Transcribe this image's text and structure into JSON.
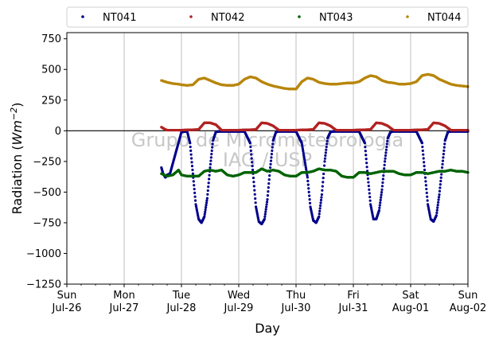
{
  "chart_data": {
    "type": "scatter",
    "title": "",
    "xlabel": "Day",
    "ylabel_main": "Radiation (",
    "ylabel_unit": "Wm",
    "ylabel_exp": "−2",
    "ylabel_close": ")",
    "xlim": [
      0,
      7
    ],
    "ylim": [
      -1250,
      800
    ],
    "yticks": [
      -1250,
      -1000,
      -750,
      -500,
      -250,
      0,
      250,
      500,
      750
    ],
    "ytick_labels": [
      "−1250",
      "−1000",
      "−750",
      "−500",
      "−250",
      "0",
      "250",
      "500",
      "750"
    ],
    "xticks": [
      {
        "x": 0,
        "day": "Sun",
        "date": "Jul-26"
      },
      {
        "x": 1,
        "day": "Mon",
        "date": "Jul-27"
      },
      {
        "x": 2,
        "day": "Tue",
        "date": "Jul-28"
      },
      {
        "x": 3,
        "day": "Wed",
        "date": "Jul-29"
      },
      {
        "x": 4,
        "day": "Thu",
        "date": "Jul-30"
      },
      {
        "x": 5,
        "day": "Fri",
        "date": "Jul-31"
      },
      {
        "x": 6,
        "day": "Sat",
        "date": "Aug-01"
      },
      {
        "x": 7,
        "day": "Sun",
        "date": "Aug-02"
      }
    ],
    "grid": "vertical",
    "zero_line": 0,
    "legend_position": "top",
    "watermark": [
      "Grupo de Micrometeorologia",
      "IAG / USP"
    ],
    "series": [
      {
        "name": "NT041",
        "color": "#00008b",
        "x": [
          1.65,
          1.68,
          1.72,
          1.75,
          1.8,
          2.0,
          2.1,
          2.15,
          2.2,
          2.25,
          2.3,
          2.35,
          2.4,
          2.45,
          2.5,
          2.55,
          2.6,
          2.65,
          2.7,
          2.75,
          2.8,
          2.85,
          2.9,
          3.0,
          3.1,
          3.2,
          3.25,
          3.3,
          3.35,
          3.4,
          3.45,
          3.5,
          3.55,
          3.6,
          3.65,
          3.7,
          3.75,
          3.8,
          3.85,
          3.9,
          4.0,
          4.1,
          4.2,
          4.25,
          4.3,
          4.35,
          4.4,
          4.45,
          4.5,
          4.55,
          4.6,
          4.65,
          4.7,
          4.75,
          4.8,
          4.85,
          4.9,
          5.0,
          5.1,
          5.2,
          5.25,
          5.3,
          5.35,
          5.4,
          5.45,
          5.5,
          5.55,
          5.6,
          5.65,
          5.7,
          5.75,
          5.8,
          5.85,
          5.9,
          6.0,
          6.1,
          6.2,
          6.25,
          6.3,
          6.35,
          6.4,
          6.45,
          6.5,
          6.55,
          6.6,
          6.65,
          6.7,
          6.75,
          6.8,
          6.85,
          6.9,
          7.0
        ],
        "y": [
          -300,
          -350,
          -380,
          -360,
          -350,
          -10,
          -5,
          -100,
          -350,
          -600,
          -720,
          -750,
          -700,
          -550,
          -300,
          -80,
          -10,
          -5,
          -5,
          -5,
          -5,
          -5,
          -5,
          -5,
          -5,
          -100,
          -350,
          -620,
          -740,
          -760,
          -720,
          -560,
          -300,
          -80,
          -10,
          -5,
          -5,
          -5,
          -5,
          -5,
          -5,
          -100,
          -380,
          -620,
          -730,
          -750,
          -700,
          -520,
          -250,
          -60,
          -10,
          -5,
          -5,
          -5,
          -5,
          -5,
          -5,
          -5,
          -5,
          -100,
          -360,
          -600,
          -720,
          -720,
          -650,
          -480,
          -250,
          -60,
          -10,
          -5,
          -5,
          -5,
          -5,
          -5,
          -5,
          -5,
          -100,
          -350,
          -600,
          -720,
          -740,
          -690,
          -520,
          -300,
          -80,
          -10,
          -5,
          -5,
          -5,
          -5,
          -5,
          -5
        ]
      },
      {
        "name": "NT042",
        "color": "#b22222",
        "x": [
          1.65,
          1.7,
          1.75,
          2.0,
          2.3,
          2.4,
          2.5,
          2.6,
          2.7,
          3.0,
          3.3,
          3.4,
          3.5,
          3.6,
          3.7,
          4.0,
          4.3,
          4.4,
          4.5,
          4.6,
          4.7,
          5.0,
          5.3,
          5.4,
          5.5,
          5.6,
          5.7,
          6.0,
          6.3,
          6.4,
          6.5,
          6.6,
          6.7,
          7.0
        ],
        "y": [
          30,
          15,
          5,
          5,
          10,
          65,
          65,
          50,
          5,
          5,
          10,
          65,
          60,
          40,
          5,
          5,
          10,
          65,
          60,
          40,
          5,
          5,
          10,
          65,
          60,
          40,
          5,
          5,
          10,
          65,
          60,
          40,
          5,
          5
        ]
      },
      {
        "name": "NT043",
        "color": "#006400",
        "x": [
          1.65,
          1.75,
          1.85,
          1.95,
          2.0,
          2.1,
          2.2,
          2.3,
          2.4,
          2.5,
          2.6,
          2.7,
          2.8,
          2.9,
          3.0,
          3.1,
          3.2,
          3.3,
          3.4,
          3.5,
          3.6,
          3.7,
          3.8,
          3.9,
          4.0,
          4.1,
          4.2,
          4.3,
          4.4,
          4.5,
          4.6,
          4.7,
          4.8,
          4.9,
          5.0,
          5.1,
          5.2,
          5.3,
          5.4,
          5.5,
          5.6,
          5.7,
          5.8,
          5.9,
          6.0,
          6.1,
          6.2,
          6.3,
          6.4,
          6.5,
          6.6,
          6.7,
          6.8,
          6.9,
          7.0
        ],
        "y": [
          -350,
          -370,
          -360,
          -320,
          -360,
          -370,
          -370,
          -370,
          -330,
          -320,
          -330,
          -320,
          -360,
          -370,
          -360,
          -340,
          -340,
          -340,
          -310,
          -330,
          -320,
          -330,
          -360,
          -370,
          -370,
          -340,
          -340,
          -330,
          -310,
          -320,
          -320,
          -330,
          -370,
          -380,
          -380,
          -340,
          -340,
          -350,
          -340,
          -330,
          -330,
          -330,
          -350,
          -360,
          -360,
          -340,
          -340,
          -350,
          -340,
          -330,
          -330,
          -320,
          -330,
          -330,
          -340
        ]
      },
      {
        "name": "NT044",
        "color": "#b8860b",
        "x": [
          1.65,
          1.75,
          1.85,
          1.95,
          2.0,
          2.1,
          2.2,
          2.3,
          2.4,
          2.5,
          2.6,
          2.7,
          2.8,
          2.9,
          3.0,
          3.1,
          3.2,
          3.3,
          3.4,
          3.5,
          3.6,
          3.7,
          3.8,
          3.9,
          4.0,
          4.1,
          4.2,
          4.3,
          4.4,
          4.5,
          4.6,
          4.7,
          4.8,
          4.9,
          5.0,
          5.1,
          5.2,
          5.3,
          5.4,
          5.5,
          5.6,
          5.7,
          5.8,
          5.9,
          6.0,
          6.1,
          6.2,
          6.3,
          6.4,
          6.5,
          6.6,
          6.7,
          6.8,
          6.9,
          7.0
        ],
        "y": [
          410,
          395,
          385,
          380,
          375,
          370,
          375,
          420,
          430,
          410,
          390,
          375,
          370,
          370,
          380,
          420,
          440,
          430,
          400,
          380,
          365,
          355,
          345,
          340,
          340,
          400,
          430,
          420,
          395,
          385,
          380,
          380,
          385,
          390,
          390,
          400,
          430,
          450,
          440,
          410,
          395,
          390,
          380,
          380,
          385,
          400,
          450,
          460,
          450,
          420,
          400,
          380,
          370,
          365,
          360
        ]
      }
    ]
  }
}
